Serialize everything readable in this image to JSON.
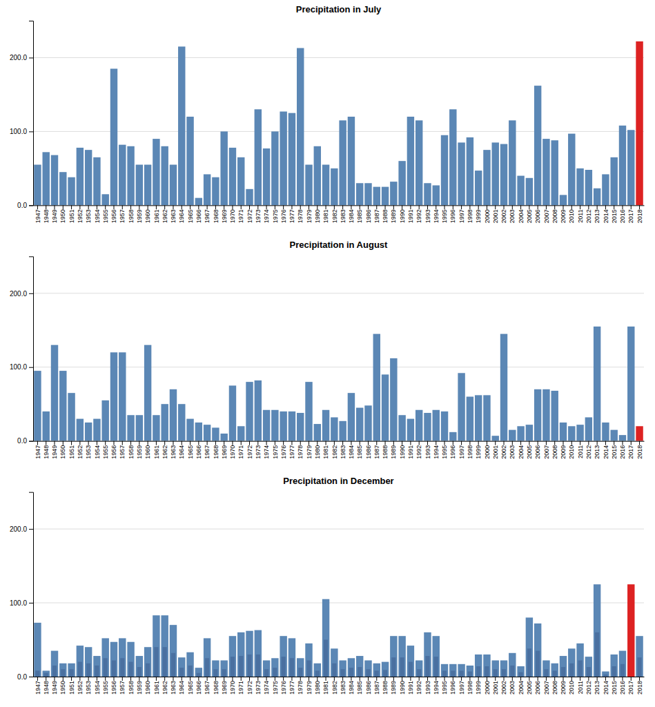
{
  "chart_data": [
    {
      "type": "bar",
      "title": "Precipitation in July",
      "categories": [
        "1947",
        "1948",
        "1949",
        "1950",
        "1951",
        "1952",
        "1953",
        "1954",
        "1955",
        "1956",
        "1957",
        "1958",
        "1959",
        "1960",
        "1961",
        "1962",
        "1963",
        "1964",
        "1965",
        "1966",
        "1967",
        "1968",
        "1969",
        "1970",
        "1971",
        "1972",
        "1973",
        "1974",
        "1975",
        "1976",
        "1977",
        "1978",
        "1979",
        "1980",
        "1981",
        "1982",
        "1983",
        "1984",
        "1985",
        "1986",
        "1987",
        "1988",
        "1989",
        "1990",
        "1991",
        "1992",
        "1993",
        "1994",
        "1995",
        "1996",
        "1997",
        "1998",
        "1999",
        "2000",
        "2001",
        "2002",
        "2003",
        "2004",
        "2005",
        "2006",
        "2007",
        "2008",
        "2009",
        "2010",
        "2011",
        "2012",
        "2013",
        "2014",
        "2015",
        "2016",
        "2017",
        "2018"
      ],
      "values": [
        55,
        72,
        68,
        45,
        38,
        78,
        75,
        65,
        15,
        185,
        82,
        80,
        55,
        55,
        90,
        80,
        55,
        215,
        120,
        10,
        42,
        38,
        100,
        78,
        65,
        22,
        130,
        77,
        100,
        127,
        125,
        213,
        55,
        80,
        55,
        50,
        115,
        120,
        30,
        30,
        25,
        25,
        32,
        60,
        120,
        115,
        30,
        27,
        95,
        130,
        85,
        92,
        47,
        75,
        85,
        83,
        115,
        40,
        37,
        162,
        90,
        88,
        14,
        97,
        50,
        48,
        23,
        42,
        65,
        108,
        102,
        222
      ],
      "colors": [
        "#5b87b5",
        "#5b87b5",
        "#5b87b5",
        "#5b87b5",
        "#5b87b5",
        "#5b87b5",
        "#5b87b5",
        "#5b87b5",
        "#5b87b5",
        "#5b87b5",
        "#5b87b5",
        "#5b87b5",
        "#5b87b5",
        "#5b87b5",
        "#5b87b5",
        "#5b87b5",
        "#5b87b5",
        "#5b87b5",
        "#5b87b5",
        "#5b87b5",
        "#5b87b5",
        "#5b87b5",
        "#5b87b5",
        "#5b87b5",
        "#5b87b5",
        "#5b87b5",
        "#5b87b5",
        "#5b87b5",
        "#5b87b5",
        "#5b87b5",
        "#5b87b5",
        "#5b87b5",
        "#5b87b5",
        "#5b87b5",
        "#5b87b5",
        "#5b87b5",
        "#5b87b5",
        "#5b87b5",
        "#5b87b5",
        "#5b87b5",
        "#5b87b5",
        "#5b87b5",
        "#5b87b5",
        "#5b87b5",
        "#5b87b5",
        "#5b87b5",
        "#5b87b5",
        "#5b87b5",
        "#5b87b5",
        "#5b87b5",
        "#5b87b5",
        "#5b87b5",
        "#5b87b5",
        "#5b87b5",
        "#5b87b5",
        "#5b87b5",
        "#5b87b5",
        "#5b87b5",
        "#5b87b5",
        "#5b87b5",
        "#5b87b5",
        "#5b87b5",
        "#5b87b5",
        "#5b87b5",
        "#5b87b5",
        "#5b87b5",
        "#5b87b5",
        "#5b87b5",
        "#5b87b5",
        "#5b87b5",
        "#5b87b5",
        "#dd2222"
      ],
      "ylim": [
        0,
        250
      ],
      "yticks": [
        {
          "value": 0,
          "label": "0.0"
        },
        {
          "value": 100,
          "label": "100.0"
        },
        {
          "value": 200,
          "label": "200.0"
        }
      ],
      "grid": true
    },
    {
      "type": "bar",
      "title": "Precipitation in August",
      "categories": [
        "1947",
        "1948",
        "1949",
        "1950",
        "1951",
        "1952",
        "1953",
        "1954",
        "1955",
        "1956",
        "1957",
        "1958",
        "1959",
        "1960",
        "1961",
        "1962",
        "1963",
        "1964",
        "1965",
        "1966",
        "1967",
        "1968",
        "1969",
        "1970",
        "1971",
        "1972",
        "1973",
        "1974",
        "1975",
        "1976",
        "1977",
        "1978",
        "1979",
        "1980",
        "1981",
        "1982",
        "1983",
        "1984",
        "1985",
        "1986",
        "1987",
        "1988",
        "1989",
        "1990",
        "1991",
        "1992",
        "1993",
        "1994",
        "1995",
        "1996",
        "1997",
        "1998",
        "1999",
        "2000",
        "2001",
        "2002",
        "2003",
        "2004",
        "2005",
        "2006",
        "2007",
        "2008",
        "2009",
        "2010",
        "2011",
        "2012",
        "2013",
        "2014",
        "2015",
        "2016",
        "2017",
        "2018"
      ],
      "values": [
        95,
        40,
        130,
        95,
        65,
        30,
        25,
        30,
        55,
        120,
        120,
        35,
        35,
        130,
        35,
        50,
        70,
        50,
        30,
        25,
        22,
        18,
        10,
        75,
        20,
        80,
        82,
        42,
        42,
        40,
        40,
        38,
        80,
        23,
        42,
        32,
        27,
        65,
        45,
        48,
        145,
        90,
        112,
        35,
        30,
        42,
        38,
        42,
        40,
        12,
        92,
        60,
        62,
        62,
        7,
        145,
        15,
        20,
        22,
        70,
        70,
        68,
        25,
        20,
        22,
        32,
        155,
        25,
        15,
        8,
        155,
        20
      ],
      "colors": [
        "#5b87b5",
        "#5b87b5",
        "#5b87b5",
        "#5b87b5",
        "#5b87b5",
        "#5b87b5",
        "#5b87b5",
        "#5b87b5",
        "#5b87b5",
        "#5b87b5",
        "#5b87b5",
        "#5b87b5",
        "#5b87b5",
        "#5b87b5",
        "#5b87b5",
        "#5b87b5",
        "#5b87b5",
        "#5b87b5",
        "#5b87b5",
        "#5b87b5",
        "#5b87b5",
        "#5b87b5",
        "#5b87b5",
        "#5b87b5",
        "#5b87b5",
        "#5b87b5",
        "#5b87b5",
        "#5b87b5",
        "#5b87b5",
        "#5b87b5",
        "#5b87b5",
        "#5b87b5",
        "#5b87b5",
        "#5b87b5",
        "#5b87b5",
        "#5b87b5",
        "#5b87b5",
        "#5b87b5",
        "#5b87b5",
        "#5b87b5",
        "#5b87b5",
        "#5b87b5",
        "#5b87b5",
        "#5b87b5",
        "#5b87b5",
        "#5b87b5",
        "#5b87b5",
        "#5b87b5",
        "#5b87b5",
        "#5b87b5",
        "#5b87b5",
        "#5b87b5",
        "#5b87b5",
        "#5b87b5",
        "#5b87b5",
        "#5b87b5",
        "#5b87b5",
        "#5b87b5",
        "#5b87b5",
        "#5b87b5",
        "#5b87b5",
        "#5b87b5",
        "#5b87b5",
        "#5b87b5",
        "#5b87b5",
        "#5b87b5",
        "#5b87b5",
        "#5b87b5",
        "#5b87b5",
        "#5b87b5",
        "#5b87b5",
        "#dd2222"
      ],
      "ylim": [
        0,
        250
      ],
      "yticks": [
        {
          "value": 0,
          "label": "0.0"
        },
        {
          "value": 100,
          "label": "100.0"
        },
        {
          "value": 200,
          "label": "200.0"
        }
      ],
      "grid": true
    },
    {
      "type": "bar",
      "title": "Precipitation in December",
      "categories": [
        "1947",
        "1948",
        "1949",
        "1950",
        "1951",
        "1952",
        "1953",
        "1954",
        "1955",
        "1956",
        "1957",
        "1958",
        "1959",
        "1960",
        "1961",
        "1962",
        "1963",
        "1964",
        "1965",
        "1966",
        "1967",
        "1968",
        "1969",
        "1970",
        "1971",
        "1972",
        "1973",
        "1974",
        "1975",
        "1976",
        "1977",
        "1978",
        "1979",
        "1980",
        "1981",
        "1982",
        "1983",
        "1984",
        "1985",
        "1986",
        "1987",
        "1988",
        "1989",
        "1990",
        "1991",
        "1992",
        "1993",
        "1994",
        "1995",
        "1996",
        "1997",
        "1998",
        "1999",
        "2000",
        "2001",
        "2002",
        "2003",
        "2004",
        "2005",
        "2006",
        "2007",
        "2008",
        "2009",
        "2010",
        "2011",
        "2012",
        "2013",
        "2014",
        "2015",
        "2016",
        "2017",
        "2018"
      ],
      "series": [
        {
          "values": [
            73,
            8,
            35,
            18,
            18,
            42,
            40,
            28,
            52,
            47,
            52,
            47,
            28,
            40,
            83,
            83,
            70,
            26,
            33,
            12,
            52,
            22,
            22,
            55,
            60,
            62,
            63,
            22,
            25,
            55,
            52,
            25,
            45,
            18,
            105,
            38,
            22,
            25,
            28,
            22,
            18,
            20,
            55,
            55,
            42,
            22,
            60,
            55,
            17,
            17,
            17,
            15,
            30,
            30,
            22,
            22,
            32,
            14,
            80,
            72,
            22,
            18,
            28,
            38,
            45,
            27,
            125,
            7,
            30,
            35,
            125,
            55
          ],
          "colors": [
            "#5b87b5",
            "#5b87b5",
            "#5b87b5",
            "#5b87b5",
            "#5b87b5",
            "#5b87b5",
            "#5b87b5",
            "#5b87b5",
            "#5b87b5",
            "#5b87b5",
            "#5b87b5",
            "#5b87b5",
            "#5b87b5",
            "#5b87b5",
            "#5b87b5",
            "#5b87b5",
            "#5b87b5",
            "#5b87b5",
            "#5b87b5",
            "#5b87b5",
            "#5b87b5",
            "#5b87b5",
            "#5b87b5",
            "#5b87b5",
            "#5b87b5",
            "#5b87b5",
            "#5b87b5",
            "#5b87b5",
            "#5b87b5",
            "#5b87b5",
            "#5b87b5",
            "#5b87b5",
            "#5b87b5",
            "#5b87b5",
            "#5b87b5",
            "#5b87b5",
            "#5b87b5",
            "#5b87b5",
            "#5b87b5",
            "#5b87b5",
            "#5b87b5",
            "#5b87b5",
            "#5b87b5",
            "#5b87b5",
            "#5b87b5",
            "#5b87b5",
            "#5b87b5",
            "#5b87b5",
            "#5b87b5",
            "#5b87b5",
            "#5b87b5",
            "#5b87b5",
            "#5b87b5",
            "#5b87b5",
            "#5b87b5",
            "#5b87b5",
            "#5b87b5",
            "#5b87b5",
            "#5b87b5",
            "#5b87b5",
            "#5b87b5",
            "#5b87b5",
            "#5b87b5",
            "#5b87b5",
            "#5b87b5",
            "#5b87b5",
            "#5b87b5",
            "#5b87b5",
            "#5b87b5",
            "#5b87b5",
            "#dd2222",
            "#5b87b5"
          ]
        },
        {
          "values": [
            8,
            5,
            15,
            10,
            10,
            20,
            18,
            15,
            25,
            22,
            25,
            20,
            13,
            18,
            40,
            40,
            32,
            12,
            15,
            5,
            25,
            10,
            10,
            27,
            28,
            30,
            30,
            10,
            12,
            27,
            25,
            12,
            22,
            8,
            50,
            18,
            10,
            12,
            13,
            10,
            8,
            9,
            26,
            26,
            20,
            10,
            28,
            27,
            8,
            8,
            8,
            7,
            14,
            14,
            10,
            10,
            15,
            6,
            38,
            35,
            10,
            8,
            13,
            18,
            22,
            13,
            60,
            3,
            14,
            17,
            60,
            26
          ],
          "colors": [
            "#4a70a0",
            "#4a70a0",
            "#4a70a0",
            "#4a70a0",
            "#4a70a0",
            "#4a70a0",
            "#4a70a0",
            "#4a70a0",
            "#4a70a0",
            "#4a70a0",
            "#4a70a0",
            "#4a70a0",
            "#4a70a0",
            "#4a70a0",
            "#4a70a0",
            "#4a70a0",
            "#4a70a0",
            "#4a70a0",
            "#4a70a0",
            "#4a70a0",
            "#4a70a0",
            "#4a70a0",
            "#4a70a0",
            "#4a70a0",
            "#4a70a0",
            "#4a70a0",
            "#4a70a0",
            "#4a70a0",
            "#4a70a0",
            "#4a70a0",
            "#4a70a0",
            "#4a70a0",
            "#4a70a0",
            "#4a70a0",
            "#4a70a0",
            "#4a70a0",
            "#4a70a0",
            "#4a70a0",
            "#4a70a0",
            "#4a70a0",
            "#4a70a0",
            "#4a70a0",
            "#4a70a0",
            "#4a70a0",
            "#4a70a0",
            "#4a70a0",
            "#4a70a0",
            "#4a70a0",
            "#4a70a0",
            "#4a70a0",
            "#4a70a0",
            "#4a70a0",
            "#4a70a0",
            "#4a70a0",
            "#4a70a0",
            "#4a70a0",
            "#4a70a0",
            "#4a70a0",
            "#4a70a0",
            "#4a70a0",
            "#4a70a0",
            "#4a70a0",
            "#4a70a0",
            "#4a70a0",
            "#4a70a0",
            "#4a70a0",
            "#4a70a0",
            "#4a70a0",
            "#4a70a0",
            "#4a70a0",
            "#dd2222",
            "#4a70a0"
          ]
        }
      ],
      "ylim": [
        0,
        250
      ],
      "yticks": [
        {
          "value": 0,
          "label": "0.0"
        },
        {
          "value": 100,
          "label": "100.0"
        },
        {
          "value": 200,
          "label": "200.0"
        }
      ],
      "grid": true
    }
  ]
}
